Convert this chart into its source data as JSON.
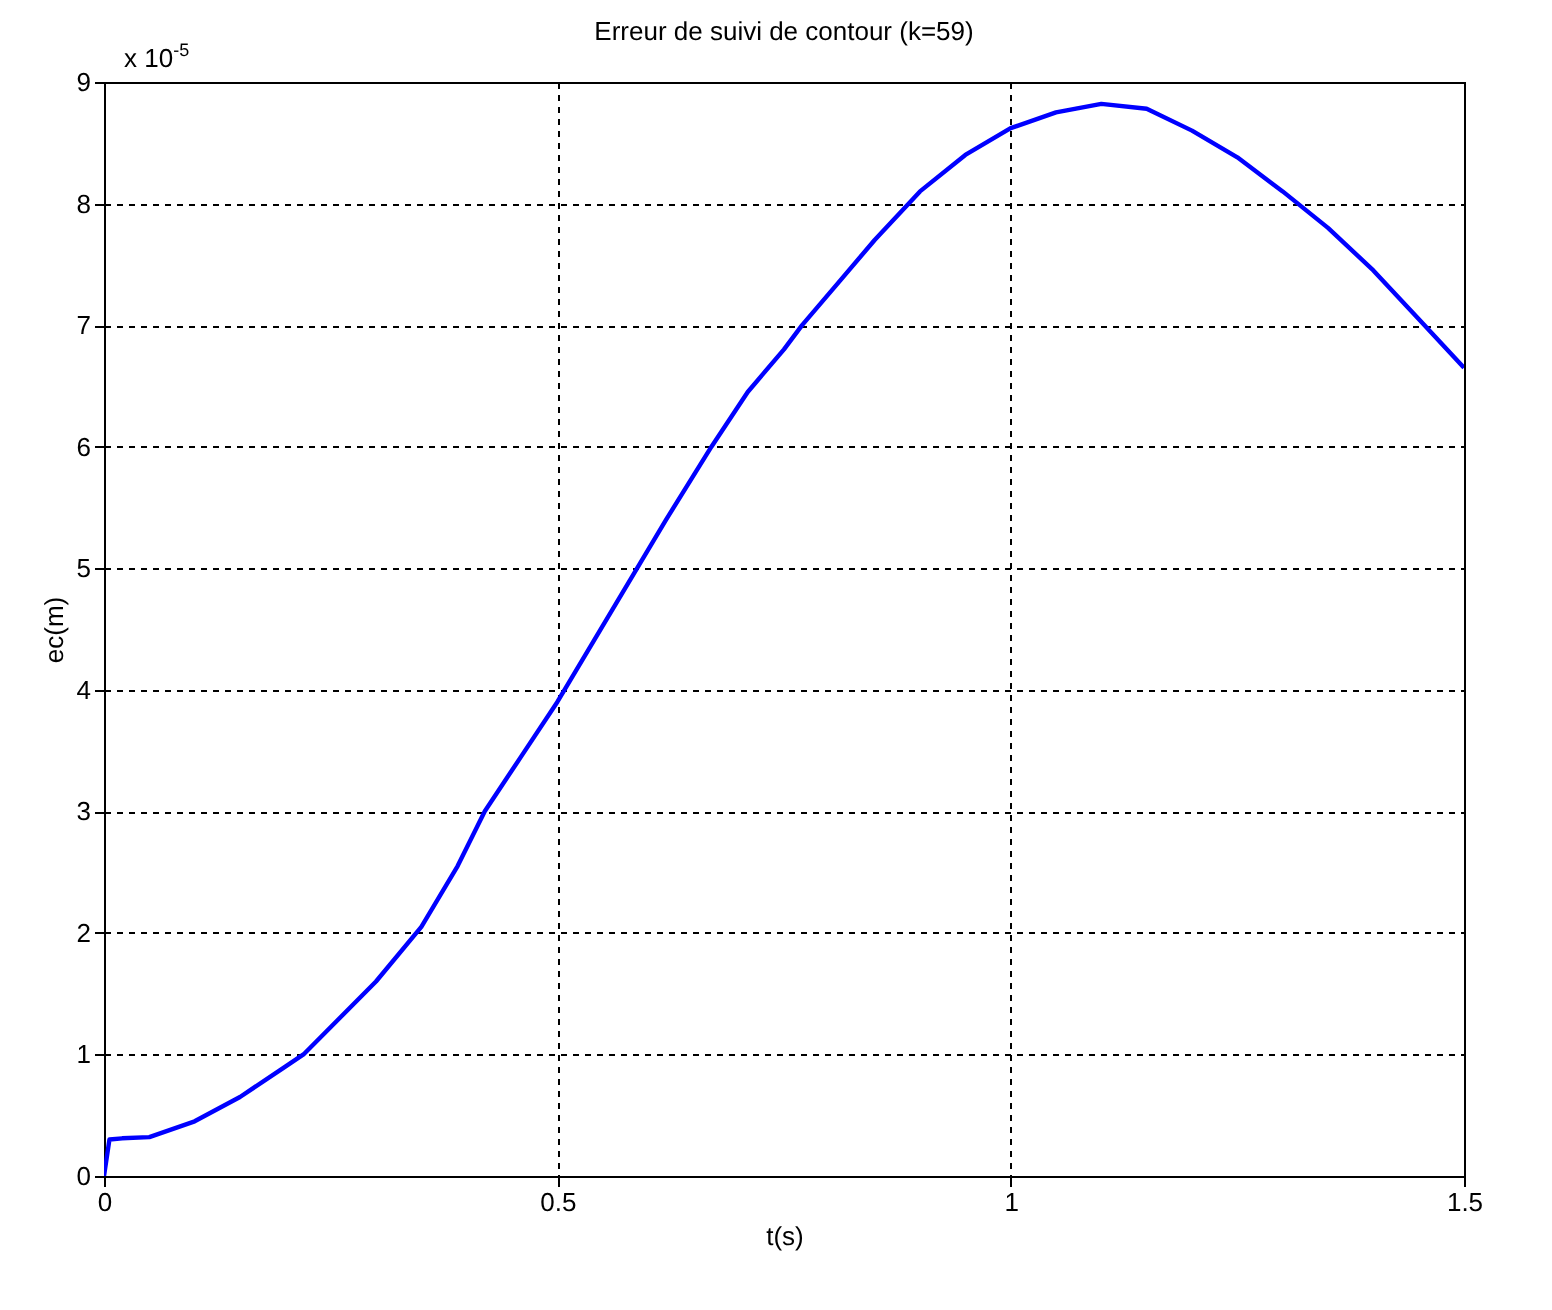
{
  "chart_data": {
    "type": "line",
    "title": "Erreur de suivi de contour (k=59)",
    "xlabel": "t(s)",
    "ylabel": "ec(m)",
    "annotations": [
      "x 10$^{-5}$"
    ],
    "x": [
      0,
      0.003,
      0.006,
      0.02,
      0.05,
      0.1,
      0.15,
      0.2,
      0.22,
      0.26,
      0.3,
      0.35,
      0.39,
      0.42,
      0.46,
      0.5,
      0.54,
      0.58,
      0.62,
      0.67,
      0.71,
      0.75,
      0.77,
      0.81,
      0.85,
      0.9,
      0.95,
      1.0,
      1.05,
      1.1,
      1.15,
      1.2,
      1.25,
      1.3,
      1.35,
      1.4,
      1.45,
      1.5
    ],
    "series": [
      {
        "color": "#0000ff",
        "values": [
          0,
          0.15,
          0.3,
          0.31,
          0.32,
          0.45,
          0.65,
          0.9,
          1.0,
          1.3,
          1.6,
          2.05,
          2.55,
          3.0,
          3.45,
          3.9,
          4.4,
          4.9,
          5.4,
          6.0,
          6.45,
          6.8,
          7.0,
          7.35,
          7.7,
          8.1,
          8.4,
          8.62,
          8.75,
          8.82,
          8.78,
          8.6,
          8.38,
          8.1,
          7.8,
          7.45,
          7.05,
          6.65
        ]
      }
    ],
    "xlim": [
      0,
      1.5
    ],
    "xticks": [
      0,
      0.5,
      1,
      1.5
    ],
    "ylim": [
      0,
      9
    ],
    "yticks": [
      0,
      1,
      2,
      3,
      4,
      5,
      6,
      7,
      8,
      9
    ],
    "grid": true,
    "line_style": "solid",
    "marker": "none"
  }
}
